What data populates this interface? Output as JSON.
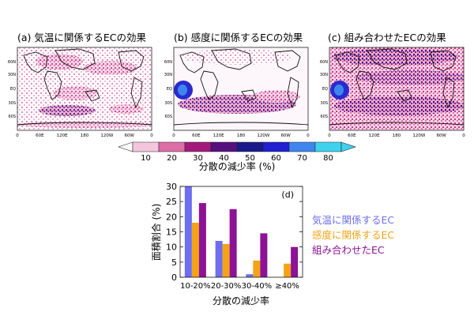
{
  "maps": {
    "panels": [
      {
        "title": "(a) 気温に関係するECの効果"
      },
      {
        "title": "(b) 感度に関係するECの効果"
      },
      {
        "title": "(c) 組み合わせたECの効果"
      }
    ],
    "lat_ticks": [
      "60N",
      "30N",
      "EQ",
      "30S",
      "60S"
    ],
    "lon_ticks": [
      "0",
      "60E",
      "120E",
      "180",
      "120W",
      "60W",
      "0"
    ]
  },
  "colorbar": {
    "label": "分散の減少率 (%)",
    "ticks": [
      "10",
      "20",
      "30",
      "40",
      "50",
      "60",
      "70",
      "80"
    ],
    "colors": [
      "#f4c6de",
      "#dd6ea6",
      "#a31a7a",
      "#55117e",
      "#1a1a8a",
      "#2020d0",
      "#3e86ee",
      "#3ed2ee"
    ]
  },
  "chart_data": {
    "type": "bar",
    "panel_label": "(d)",
    "categories": [
      "10-20%",
      "20-30%",
      "30-40%",
      "≥40%"
    ],
    "series": [
      {
        "name": "気温に関係するEC",
        "color": "#6e6ef0",
        "values": [
          30,
          12,
          1,
          0
        ]
      },
      {
        "name": "感度に関係するEC",
        "color": "#f3a315",
        "values": [
          18,
          11,
          5.5,
          4.5
        ]
      },
      {
        "name": "組み合わせたEC",
        "color": "#8c1296",
        "values": [
          24.5,
          22.5,
          14.5,
          10
        ]
      }
    ],
    "ylabel": "面積割合 (%)",
    "xlabel": "分散の減少率",
    "ylim": [
      0,
      30
    ],
    "yticks": [
      0,
      5,
      10,
      15,
      20,
      25,
      30
    ],
    "grid": false
  }
}
